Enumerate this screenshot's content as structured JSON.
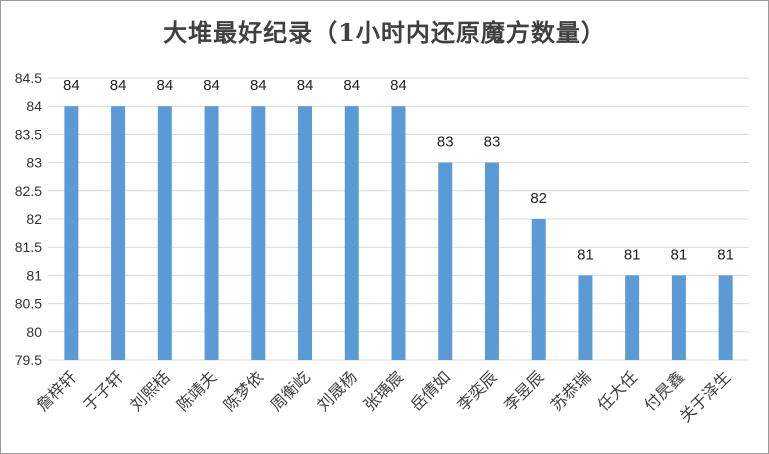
{
  "chart_data": {
    "type": "bar",
    "title": "大堆最好纪录（1小时内还原魔方数量）",
    "categories": [
      "詹梓轩",
      "于子轩",
      "刘熙栝",
      "陈靖夫",
      "陈梦依",
      "周衡屹",
      "刘晟杨",
      "张瑀宸",
      "岳倩如",
      "李奕辰",
      "李昱辰",
      "苏恭瑞",
      "任大任",
      "付昃鑫",
      "关于泽生"
    ],
    "values": [
      84,
      84,
      84,
      84,
      84,
      84,
      84,
      84,
      83,
      83,
      82,
      81,
      81,
      81,
      81
    ],
    "ylim": [
      79.5,
      84.5
    ],
    "yticks": [
      "84.5",
      "84",
      "83.5",
      "83",
      "82.5",
      "82",
      "81.5",
      "81",
      "80.5",
      "80",
      "79.5"
    ],
    "xlabel": "",
    "ylabel": "",
    "grid": true,
    "legend": "none",
    "bar_color": "#5B9BD5",
    "grid_color": "#d9d9d9"
  }
}
